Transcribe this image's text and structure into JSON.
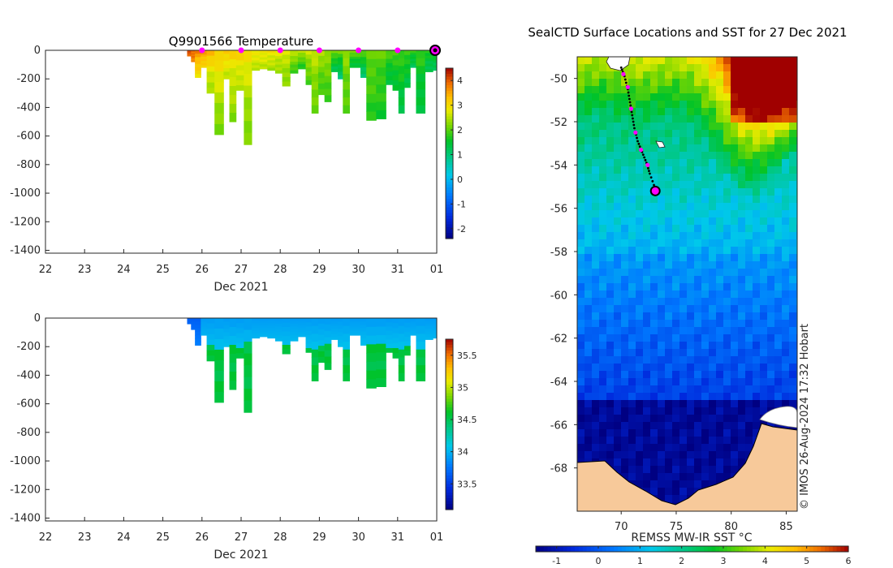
{
  "chart_data": [
    {
      "type": "heatmap",
      "id": "temperature_section",
      "title": "Q9901566  Temperature",
      "xlabel": "Dec 2021",
      "ylabel": "",
      "x_ticks": [
        "22",
        "23",
        "24",
        "25",
        "26",
        "27",
        "28",
        "29",
        "30",
        "31",
        "01"
      ],
      "xlim": [
        22,
        32
      ],
      "y_ticks": [
        0,
        -200,
        -400,
        -600,
        -800,
        -1000,
        -1200,
        -1400
      ],
      "ylim": [
        -1420,
        0
      ],
      "colorbar": {
        "ticks": [
          4,
          3,
          2,
          1,
          0,
          -1,
          -2
        ],
        "range": [
          -2.4,
          4.5
        ]
      },
      "profiles": [
        {
          "x": 25.62,
          "depth": 40,
          "t_surf": 4.2,
          "t_deep": 3.9
        },
        {
          "x": 25.72,
          "depth": 80,
          "t_surf": 4.0,
          "t_deep": 3.7
        },
        {
          "x": 25.82,
          "depth": 190,
          "t_surf": 3.9,
          "t_deep": 2.9
        },
        {
          "x": 25.97,
          "depth": 120,
          "t_surf": 3.8,
          "t_deep": 3.0
        },
        {
          "x": 26.12,
          "depth": 300,
          "t_surf": 3.6,
          "t_deep": 2.3
        },
        {
          "x": 26.32,
          "depth": 590,
          "t_surf": 3.4,
          "t_deep": 2.1
        },
        {
          "x": 26.55,
          "depth": 200,
          "t_surf": 3.4,
          "t_deep": 2.5
        },
        {
          "x": 26.7,
          "depth": 500,
          "t_surf": 3.2,
          "t_deep": 2.2
        },
        {
          "x": 26.87,
          "depth": 280,
          "t_surf": 3.3,
          "t_deep": 2.4
        },
        {
          "x": 27.07,
          "depth": 660,
          "t_surf": 3.1,
          "t_deep": 2.1
        },
        {
          "x": 27.27,
          "depth": 140,
          "t_surf": 3.0,
          "t_deep": 2.5
        },
        {
          "x": 27.47,
          "depth": 130,
          "t_surf": 3.0,
          "t_deep": 2.5
        },
        {
          "x": 27.67,
          "depth": 140,
          "t_surf": 3.0,
          "t_deep": 2.4
        },
        {
          "x": 27.87,
          "depth": 160,
          "t_surf": 2.9,
          "t_deep": 2.3
        },
        {
          "x": 28.05,
          "depth": 250,
          "t_surf": 2.8,
          "t_deep": 2.2
        },
        {
          "x": 28.25,
          "depth": 160,
          "t_surf": 2.8,
          "t_deep": 1.8
        },
        {
          "x": 28.45,
          "depth": 130,
          "t_surf": 2.8,
          "t_deep": 1.6
        },
        {
          "x": 28.65,
          "depth": 240,
          "t_surf": 2.7,
          "t_deep": 1.9
        },
        {
          "x": 28.8,
          "depth": 440,
          "t_surf": 2.7,
          "t_deep": 2.0
        },
        {
          "x": 28.97,
          "depth": 310,
          "t_surf": 2.6,
          "t_deep": 1.8
        },
        {
          "x": 29.13,
          "depth": 360,
          "t_surf": 2.5,
          "t_deep": 1.8
        },
        {
          "x": 29.3,
          "depth": 150,
          "t_surf": 2.4,
          "t_deep": 1.2
        },
        {
          "x": 29.47,
          "depth": 200,
          "t_surf": 2.3,
          "t_deep": 1.0
        },
        {
          "x": 29.6,
          "depth": 440,
          "t_surf": 2.4,
          "t_deep": 1.9
        },
        {
          "x": 29.77,
          "depth": 120,
          "t_surf": 2.4,
          "t_deep": 1.3
        },
        {
          "x": 30.05,
          "depth": 190,
          "t_surf": 2.3,
          "t_deep": 1.0
        },
        {
          "x": 30.2,
          "depth": 490,
          "t_surf": 2.2,
          "t_deep": 1.7
        },
        {
          "x": 30.45,
          "depth": 480,
          "t_surf": 2.1,
          "t_deep": 1.6
        },
        {
          "x": 30.7,
          "depth": 240,
          "t_surf": 2.1,
          "t_deep": 1.3
        },
        {
          "x": 30.87,
          "depth": 280,
          "t_surf": 2.0,
          "t_deep": 1.4
        },
        {
          "x": 31.02,
          "depth": 440,
          "t_surf": 2.0,
          "t_deep": 1.3
        },
        {
          "x": 31.17,
          "depth": 260,
          "t_surf": 2.0,
          "t_deep": 1.3
        },
        {
          "x": 31.32,
          "depth": 120,
          "t_surf": 1.9,
          "t_deep": 1.2
        },
        {
          "x": 31.47,
          "depth": 440,
          "t_surf": 1.9,
          "t_deep": 1.3
        },
        {
          "x": 31.7,
          "depth": 150,
          "t_surf": 1.8,
          "t_deep": 1.2
        },
        {
          "x": 31.9,
          "depth": 140,
          "t_surf": 1.8,
          "t_deep": 1.2
        }
      ],
      "markers_x": [
        26,
        27,
        28,
        29,
        30,
        31
      ],
      "latest_marker_x": 32
    },
    {
      "type": "heatmap",
      "id": "salinity_section",
      "title": "",
      "xlabel": "Dec 2021",
      "ylabel": "",
      "x_ticks": [
        "22",
        "23",
        "24",
        "25",
        "26",
        "27",
        "28",
        "29",
        "30",
        "31",
        "01"
      ],
      "xlim": [
        22,
        32
      ],
      "y_ticks": [
        0,
        -200,
        -400,
        -600,
        -800,
        -1000,
        -1200,
        -1400
      ],
      "ylim": [
        -1420,
        0
      ],
      "colorbar": {
        "ticks": [
          35.5,
          35,
          34.5,
          34,
          33.5
        ],
        "range": [
          33.1,
          35.75
        ]
      },
      "shallow_value": 33.9,
      "deep_value": 34.6
    },
    {
      "type": "heatmap",
      "id": "sst_map",
      "title": "SealCTD Surface Locations and SST for 27 Dec 2021",
      "xlabel": "REMSS MW-IR SST °C",
      "x_ticks": [
        "70",
        "75",
        "80",
        "85"
      ],
      "xlim": [
        66,
        86
      ],
      "y_ticks": [
        "-50",
        "-52",
        "-54",
        "-56",
        "-58",
        "-60",
        "-62",
        "-64",
        "-66",
        "-68"
      ],
      "ylim": [
        -70,
        -49
      ],
      "colorbar": {
        "ticks": [
          "-1",
          "0",
          "1",
          "2",
          "3",
          "4",
          "5",
          "6"
        ],
        "range": [
          -1.5,
          6
        ]
      },
      "track": [
        {
          "lon": 70.0,
          "lat": -49.5
        },
        {
          "lon": 70.3,
          "lat": -49.9
        },
        {
          "lon": 70.6,
          "lat": -50.5
        },
        {
          "lon": 70.8,
          "lat": -51.1
        },
        {
          "lon": 71.0,
          "lat": -51.7
        },
        {
          "lon": 71.2,
          "lat": -52.3
        },
        {
          "lon": 71.5,
          "lat": -52.9
        },
        {
          "lon": 71.9,
          "lat": -53.4
        },
        {
          "lon": 72.3,
          "lat": -53.9
        },
        {
          "lon": 72.6,
          "lat": -54.4
        },
        {
          "lon": 73.1,
          "lat": -55.1
        }
      ],
      "daily_positions": [
        {
          "lon": 70.2,
          "lat": -49.8
        },
        {
          "lon": 70.6,
          "lat": -50.4
        },
        {
          "lon": 70.9,
          "lat": -51.4
        },
        {
          "lon": 71.3,
          "lat": -52.5
        },
        {
          "lon": 71.8,
          "lat": -53.3
        },
        {
          "lon": 72.4,
          "lat": -54.0
        }
      ],
      "latest_position": {
        "lon": 73.1,
        "lat": -55.2
      },
      "credit": "© IMOS 26-Aug-2024 17:32 Hobart"
    }
  ]
}
